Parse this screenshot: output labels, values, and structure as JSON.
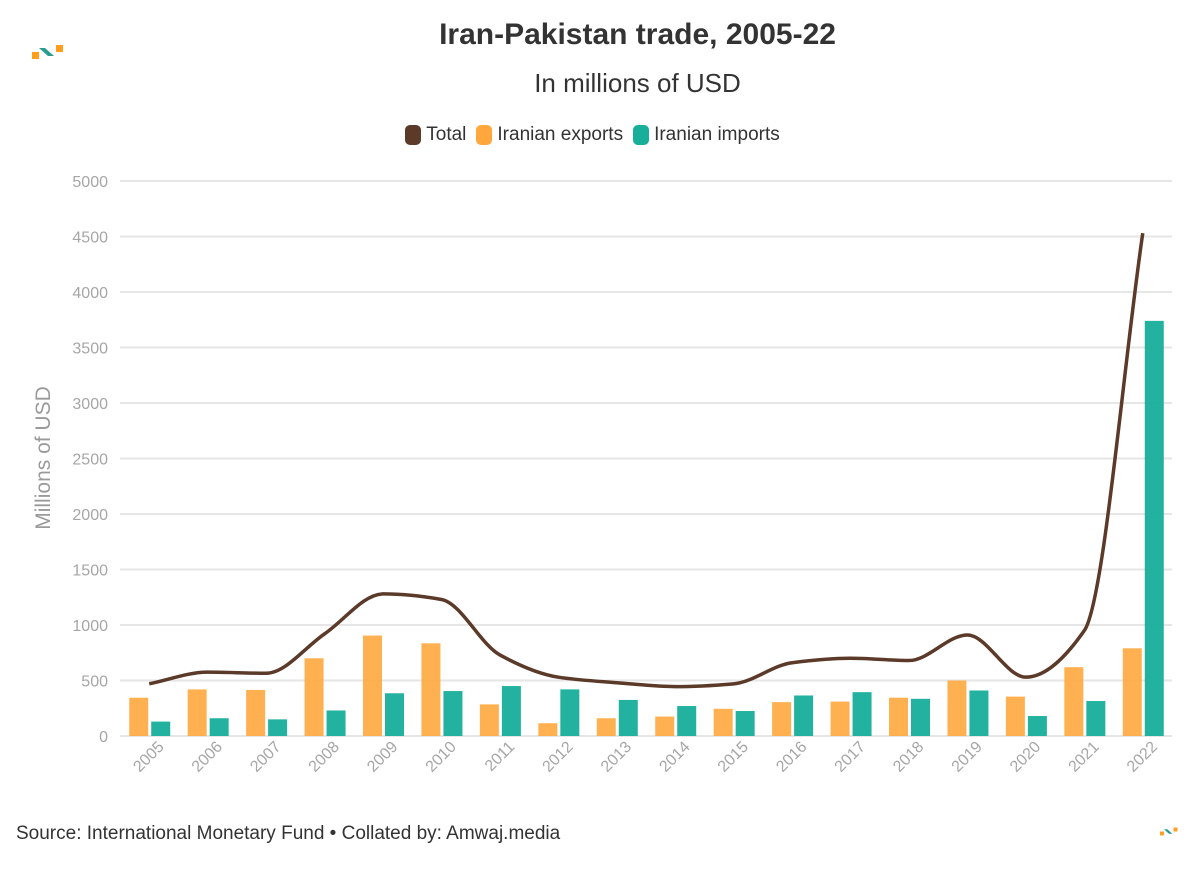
{
  "header": {
    "title": "Iran-Pakistan trade, 2005-22",
    "subtitle": "In millions of USD"
  },
  "legend": [
    {
      "label": "Total",
      "color": "#5b3a29"
    },
    {
      "label": "Iranian exports",
      "color": "#ffa73d"
    },
    {
      "label": "Iranian imports",
      "color": "#17ae9a"
    }
  ],
  "footer": {
    "source": "Source: International Monetary Fund • Collated by: Amwaj.media"
  },
  "chart_data": {
    "type": "bar",
    "title": "Iran-Pakistan trade, 2005-22",
    "subtitle": "In millions of USD",
    "xlabel": "",
    "ylabel": "Millions of USD",
    "ylim": [
      0,
      5000
    ],
    "yticks": [
      0,
      500,
      1000,
      1500,
      2000,
      2500,
      3000,
      3500,
      4000,
      4500,
      5000
    ],
    "grid": true,
    "legend_position": "top-center",
    "categories": [
      "2005",
      "2006",
      "2007",
      "2008",
      "2009",
      "2010",
      "2011",
      "2012",
      "2013",
      "2014",
      "2015",
      "2016",
      "2017",
      "2018",
      "2019",
      "2020",
      "2021",
      "2022"
    ],
    "series": [
      {
        "name": "Total",
        "type": "line",
        "color": "#5b3a29",
        "values": [
          470,
          575,
          565,
          920,
          1280,
          1230,
          730,
          530,
          480,
          445,
          470,
          660,
          700,
          680,
          910,
          530,
          950,
          4530
        ]
      },
      {
        "name": "Iranian exports",
        "type": "bar",
        "color": "#ffa73d",
        "values": [
          345,
          420,
          415,
          700,
          905,
          835,
          285,
          115,
          160,
          175,
          245,
          305,
          310,
          345,
          500,
          355,
          620,
          790
        ]
      },
      {
        "name": "Iranian imports",
        "type": "bar",
        "color": "#17ae9a",
        "values": [
          130,
          160,
          150,
          230,
          385,
          405,
          450,
          420,
          325,
          270,
          225,
          365,
          395,
          335,
          410,
          180,
          315,
          3740
        ]
      }
    ]
  }
}
